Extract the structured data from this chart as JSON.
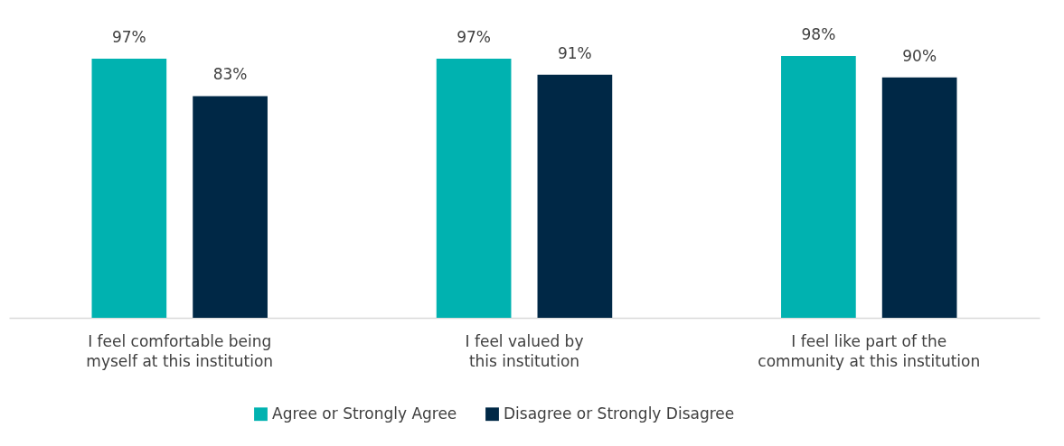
{
  "chart_data": {
    "type": "bar",
    "categories": [
      "I feel comfortable being myself at this institution",
      "I feel valued by this institution",
      "I feel like part of the community at this institution"
    ],
    "series": [
      {
        "name": "Agree or Strongly Agree",
        "color": "#00b2b0",
        "values": [
          97,
          97,
          98
        ],
        "value_labels": [
          "97%",
          "97%",
          "98%"
        ]
      },
      {
        "name": "Disagree or Strongly Disagree",
        "color": "#002846",
        "values": [
          83,
          91,
          90
        ],
        "value_labels": [
          "83%",
          "91%",
          "90%"
        ]
      }
    ],
    "tick_labels": "x",
    "grid": false,
    "legend": "bottom"
  }
}
